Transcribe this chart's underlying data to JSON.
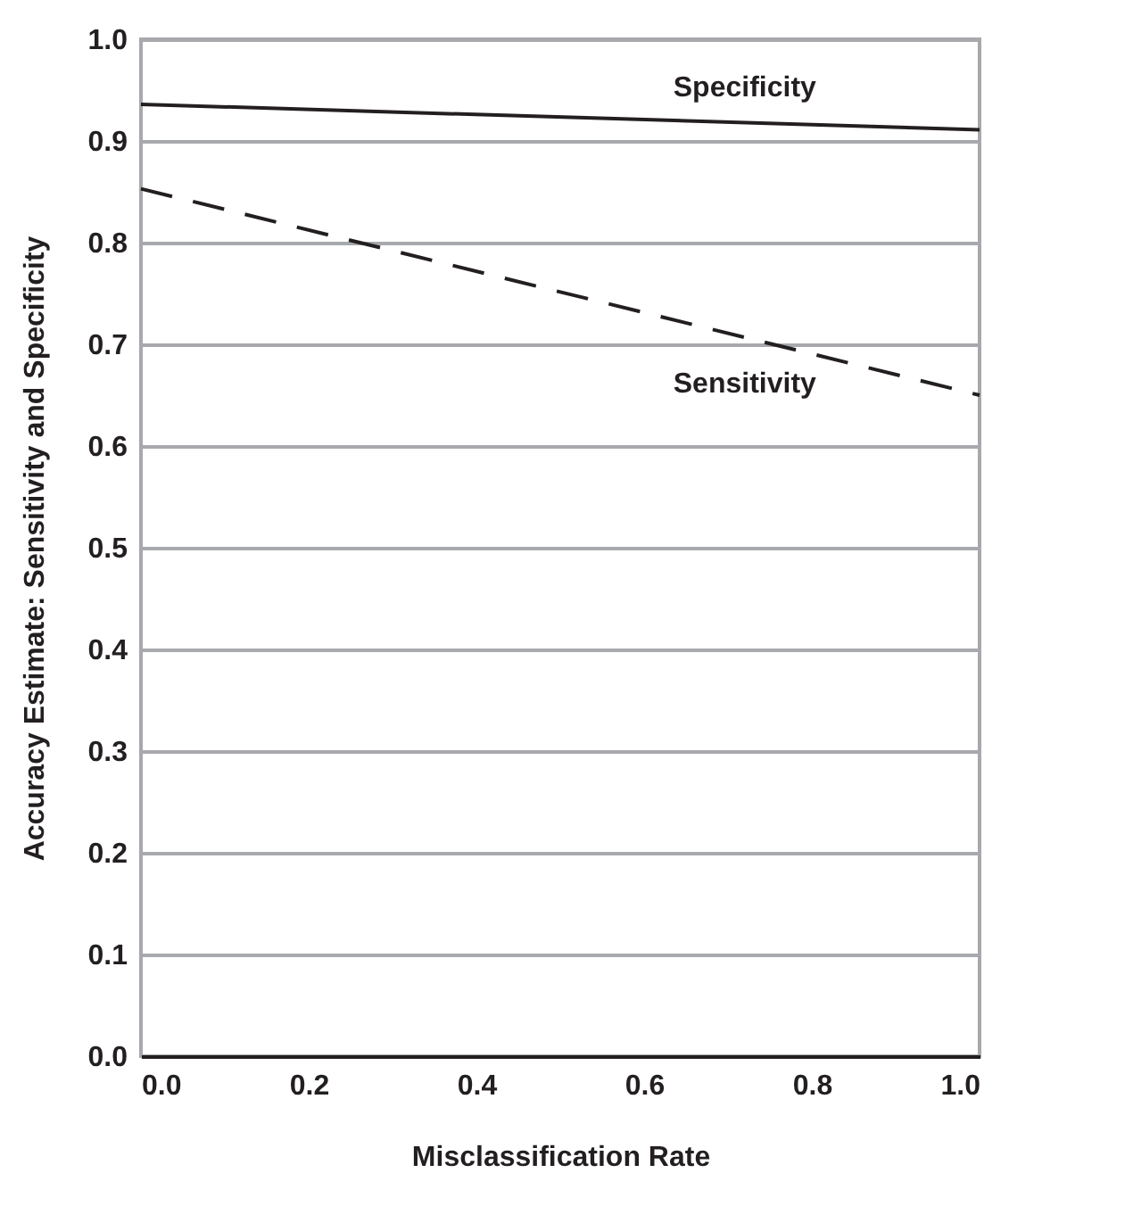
{
  "chart_data": {
    "type": "line",
    "xlabel": "Misclassification Rate",
    "ylabel": "Accuracy Estimate: Sensitivity and Specificity",
    "x": [
      0,
      1
    ],
    "series": [
      {
        "name": "Specificity",
        "color": "#231f20",
        "values": [
          0.936,
          0.911
        ],
        "line_style": "solid"
      },
      {
        "name": "Sensitivity",
        "color": "#231f20",
        "values": [
          0.853,
          0.65
        ],
        "line_style": "dashed"
      }
    ],
    "xlim": [
      0,
      1
    ],
    "xticks": [
      {
        "value": 0,
        "label": "0.0"
      },
      0.2,
      0.4,
      0.6,
      0.8,
      {
        "value": 1,
        "label": "1.0"
      }
    ],
    "ylim": [
      0,
      1
    ],
    "yticks": [
      {
        "value": 0,
        "label": "0.0"
      },
      0.1,
      0.2,
      0.3,
      0.4,
      0.5,
      0.6,
      0.7,
      0.8,
      0.9,
      {
        "value": 1,
        "label": "1.0"
      }
    ],
    "grid": "y",
    "marker": "none"
  }
}
